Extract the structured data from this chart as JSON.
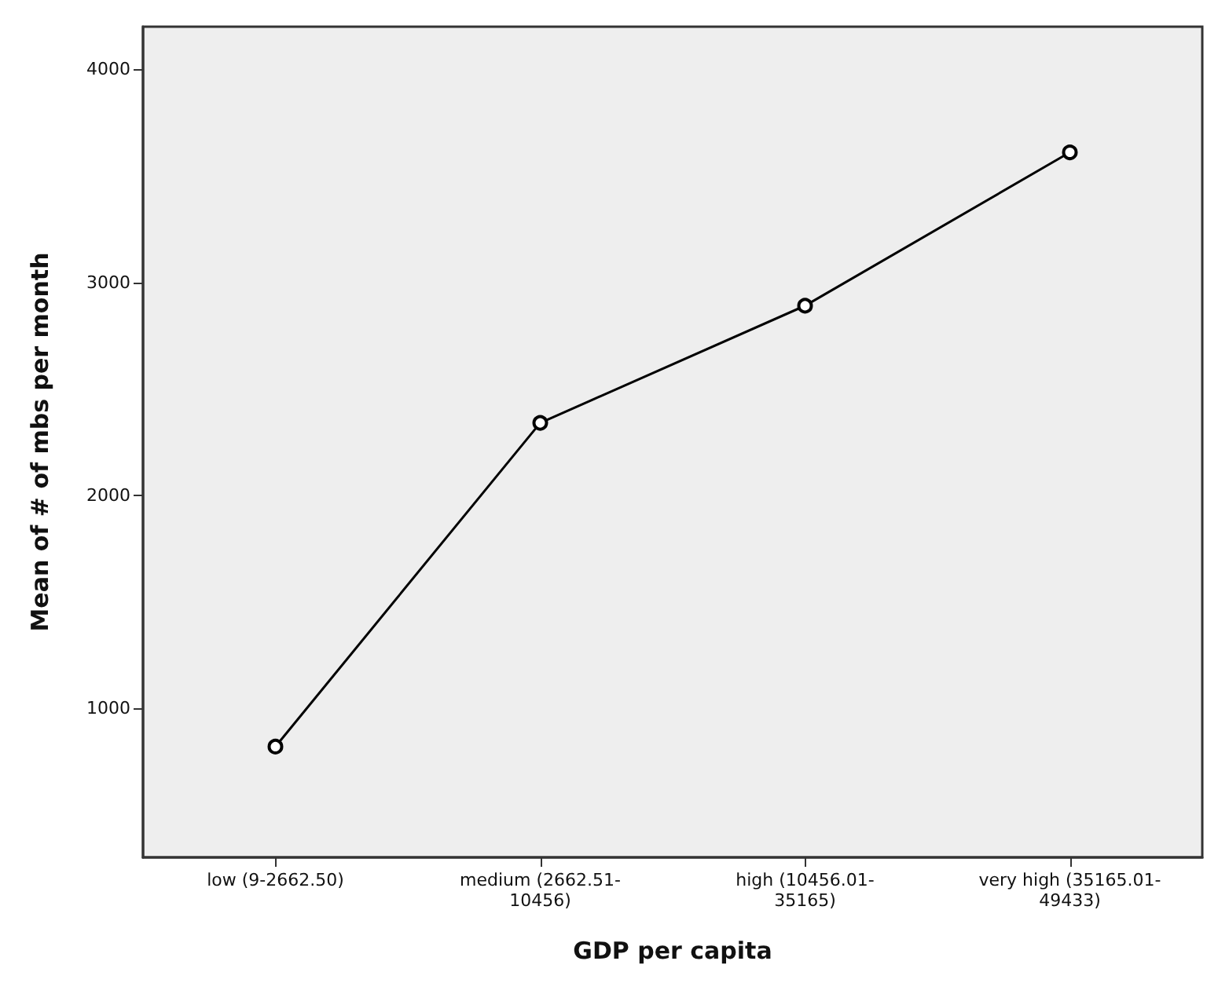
{
  "chart_data": {
    "type": "line",
    "xlabel": "GDP per capita",
    "ylabel": "Mean of # of mbs per month",
    "categories": [
      "low (9-2662.50)",
      "medium (2662.51-\n10456)",
      "high (10456.01-\n35165)",
      "very high (35165.01-\n49433)"
    ],
    "series": [
      {
        "color": "#000000",
        "values": [
          820,
          2340,
          2890,
          3610
        ]
      }
    ],
    "ylim": [
      300,
      4200
    ],
    "yticks": [
      1000,
      2000,
      3000,
      4000
    ],
    "grid": false,
    "marker": "circle",
    "line_style": "solid"
  }
}
